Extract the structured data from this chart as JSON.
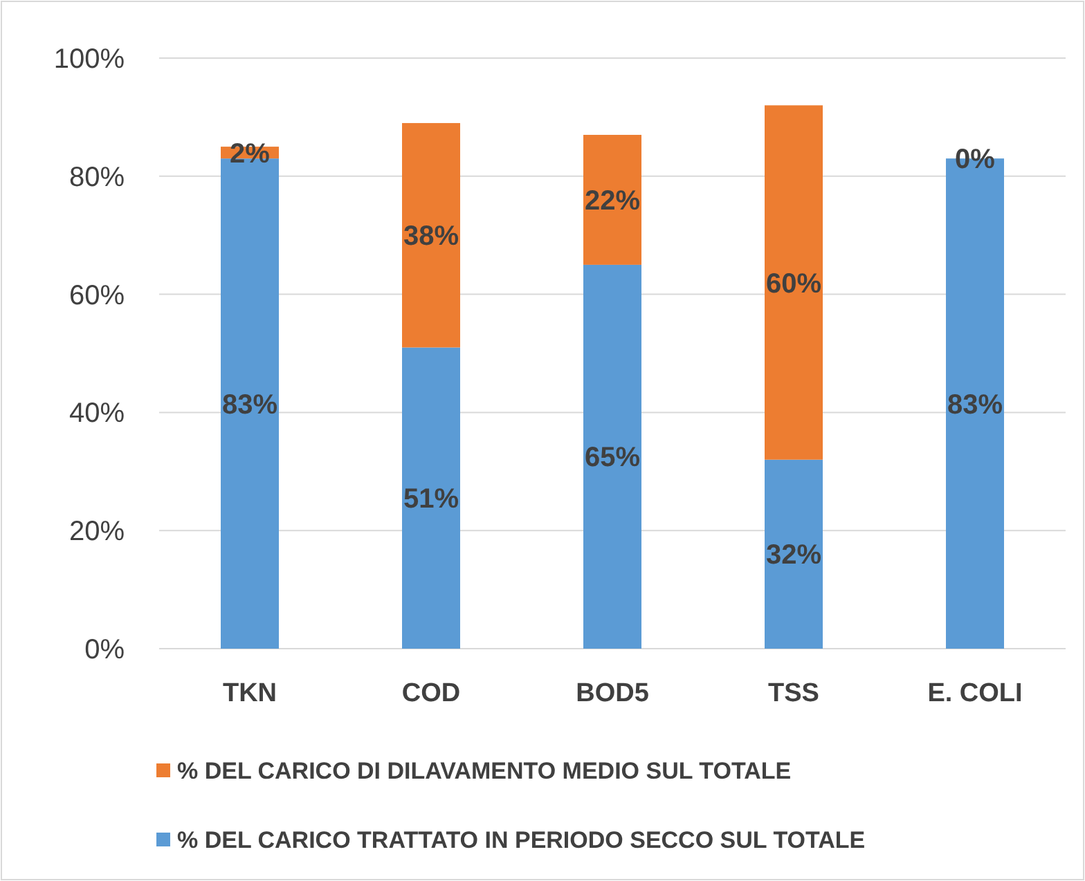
{
  "chart_data": {
    "type": "bar",
    "stacked": true,
    "categories": [
      "TKN",
      "COD",
      "BOD5",
      "TSS",
      "E. COLI"
    ],
    "series": [
      {
        "name": "% DEL CARICO TRATTATO IN PERIODO SECCO SUL TOTALE",
        "color": "#5b9bd5",
        "values": [
          83,
          51,
          65,
          32,
          83
        ],
        "value_labels": [
          "83%",
          "51%",
          "65%",
          "32%",
          "83%"
        ]
      },
      {
        "name": "% DEL CARICO DI DILAVAMENTO MEDIO SUL TOTALE",
        "color": "#ed7d31",
        "values": [
          2,
          38,
          22,
          60,
          0
        ],
        "value_labels": [
          "2%",
          "38%",
          "22%",
          "60%",
          "0%"
        ]
      }
    ],
    "ylim": [
      0,
      100
    ],
    "yticks": [
      {
        "value": 0,
        "label": "0%"
      },
      {
        "value": 20,
        "label": "20%"
      },
      {
        "value": 40,
        "label": "40%"
      },
      {
        "value": 60,
        "label": "60%"
      },
      {
        "value": 80,
        "label": "80%"
      },
      {
        "value": 100,
        "label": "100%"
      }
    ],
    "grid": "y",
    "legend": "bottom"
  }
}
